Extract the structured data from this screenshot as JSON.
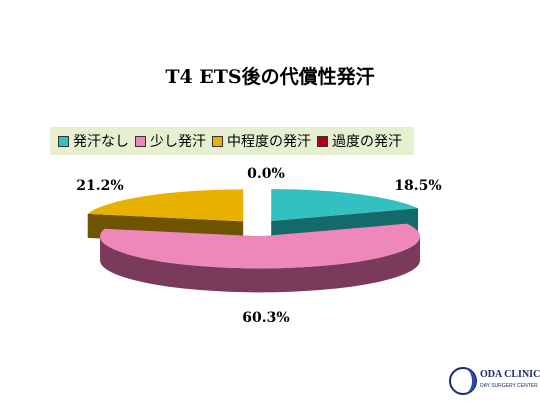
{
  "title": "T4 ETS後の代償性発汗",
  "legend": [
    {
      "label": "発汗なし",
      "color": "#33c0c0"
    },
    {
      "label": "少し発汗",
      "color": "#ee88bb"
    },
    {
      "label": "中程度の発汗",
      "color": "#e8b000"
    },
    {
      "label": "過度の発汗",
      "color": "#b00020"
    }
  ],
  "chart_data": {
    "type": "pie",
    "style": "3d-exploded",
    "categories": [
      "発汗なし",
      "少し発汗",
      "中程度の発汗",
      "過度の発汗"
    ],
    "values": [
      18.5,
      60.3,
      21.2,
      0.0
    ],
    "labels": [
      "18.5%",
      "60.3%",
      "21.2%",
      "0.0%"
    ],
    "colors": [
      "#33c0c0",
      "#ee88bb",
      "#e8b000",
      "#b00020"
    ],
    "side_colors": [
      "#146a6a",
      "#7a3a5c",
      "#6e5400",
      "#5a0010"
    ],
    "legend_position": "top"
  },
  "logo": {
    "line1": "ODA CLINIC",
    "line2": "DAY SURGERY CENTER"
  }
}
